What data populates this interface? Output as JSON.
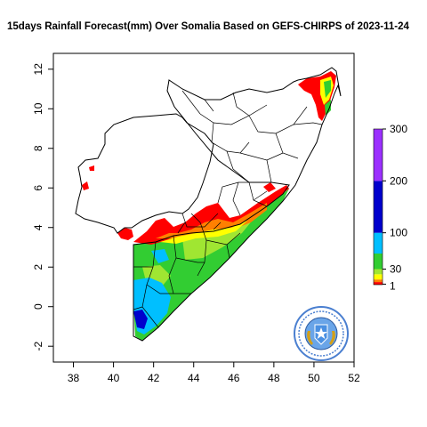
{
  "title": "15days Rainfall Forecast(mm) Over Somalia Based on  GEFS-CHIRPS of 2023-11-24",
  "x_axis": {
    "ticks": [
      "38",
      "40",
      "42",
      "44",
      "46",
      "48",
      "50",
      "52"
    ],
    "range": [
      37,
      52
    ]
  },
  "y_axis": {
    "ticks": [
      "-2",
      "0",
      "2",
      "4",
      "6",
      "8",
      "10",
      "12"
    ],
    "range": [
      -2.8,
      12.8
    ]
  },
  "legend": {
    "placement": "right",
    "labels": [
      "1",
      "30",
      "100",
      "200",
      "300"
    ],
    "bands": [
      {
        "from": 0,
        "to": 5,
        "color": "#ff0000"
      },
      {
        "from": 5,
        "to": 10,
        "color": "#ff8000"
      },
      {
        "from": 10,
        "to": 20,
        "color": "#ffff00"
      },
      {
        "from": 20,
        "to": 30,
        "color": "#a0e632"
      },
      {
        "from": 30,
        "to": 60,
        "color": "#32cd32"
      },
      {
        "from": 60,
        "to": 100,
        "color": "#00bfff"
      },
      {
        "from": 100,
        "to": 200,
        "color": "#0000cd"
      },
      {
        "from": 200,
        "to": 300,
        "color": "#9b30ff"
      }
    ]
  },
  "colors": {
    "red": "#ff0000",
    "orange": "#ff8000",
    "yellow": "#ffff00",
    "light_green": "#a0e632",
    "green": "#32cd32",
    "cyan": "#00bfff",
    "blue": "#0000cd",
    "purple": "#9b30ff",
    "boundary": "#000000"
  },
  "emblem": {
    "icon": "somalia-coat-of-arms-seal",
    "ring_color": "#4a7fd0",
    "inner_color": "#6aa5e8"
  }
}
